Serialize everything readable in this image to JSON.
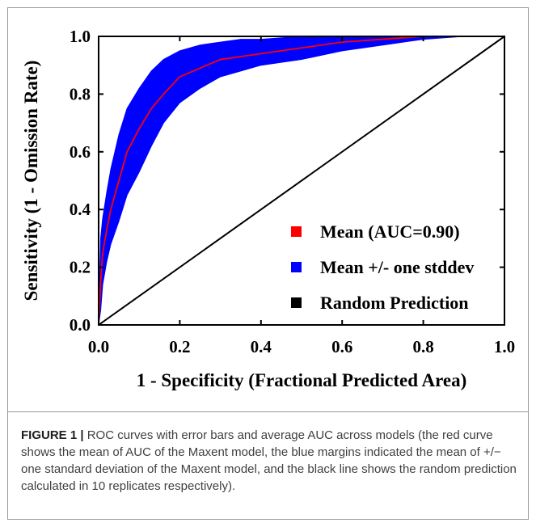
{
  "chart_data": {
    "type": "line",
    "xlabel": "1 - Specificity (Fractional Predicted Area)",
    "ylabel": "Sensitivity (1 - Omission Rate)",
    "xlim": [
      0,
      1
    ],
    "ylim": [
      0,
      1
    ],
    "xticks": [
      "0.0",
      "0.2",
      "0.4",
      "0.6",
      "0.8",
      "1.0"
    ],
    "yticks": [
      "0.0",
      "0.2",
      "0.4",
      "0.6",
      "0.8",
      "1.0"
    ],
    "legend_position": "bottom-right",
    "series": [
      {
        "name": "Mean (AUC=0.90)",
        "color": "#ff0000",
        "x": [
          0,
          0.005,
          0.01,
          0.02,
          0.03,
          0.05,
          0.07,
          0.1,
          0.13,
          0.16,
          0.2,
          0.25,
          0.3,
          0.35,
          0.4,
          0.5,
          0.6,
          0.7,
          0.8,
          0.9,
          1.0
        ],
        "y": [
          0,
          0.15,
          0.25,
          0.33,
          0.4,
          0.5,
          0.6,
          0.68,
          0.75,
          0.8,
          0.86,
          0.89,
          0.92,
          0.93,
          0.94,
          0.96,
          0.98,
          0.99,
          1.0,
          1.0,
          1.0
        ]
      },
      {
        "name": "Mean +/- one stddev",
        "color": "#0000ff",
        "x": [
          0,
          0.005,
          0.01,
          0.02,
          0.03,
          0.05,
          0.07,
          0.1,
          0.13,
          0.16,
          0.2,
          0.25,
          0.3,
          0.35,
          0.4,
          0.5,
          0.6,
          0.7,
          0.8,
          0.9,
          1.0
        ],
        "y_upper": [
          0,
          0.3,
          0.37,
          0.46,
          0.54,
          0.66,
          0.75,
          0.82,
          0.88,
          0.92,
          0.95,
          0.97,
          0.98,
          0.99,
          0.99,
          1.0,
          1.0,
          1.0,
          1.0,
          1.0,
          1.0
        ],
        "y_lower": [
          0,
          0.05,
          0.14,
          0.22,
          0.28,
          0.36,
          0.45,
          0.53,
          0.62,
          0.7,
          0.77,
          0.82,
          0.86,
          0.88,
          0.9,
          0.92,
          0.95,
          0.97,
          0.99,
          1.0,
          1.0
        ]
      },
      {
        "name": "Random Prediction",
        "color": "#000000",
        "x": [
          0,
          1
        ],
        "y": [
          0,
          1
        ]
      }
    ]
  },
  "caption": {
    "label": "FIGURE 1 |",
    "text": " ROC curves with error bars and average AUC across models (the red curve shows the mean of AUC of the Maxent model, the blue margins indicated the mean of +/− one standard deviation of the Maxent model, and the black line shows the random prediction calculated in 10 replicates respectively)."
  }
}
